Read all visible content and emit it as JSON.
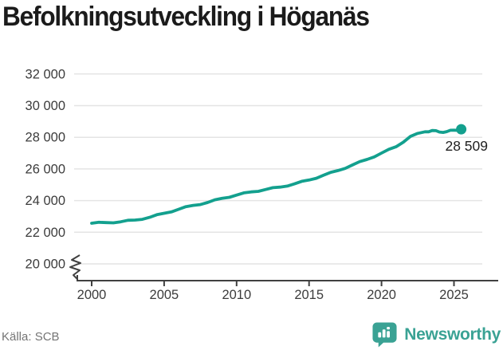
{
  "header": {
    "title": "Befolkningsutveckling i Höganäs"
  },
  "footer": {
    "source": "Källa: SCB",
    "brand": "Newsworthy",
    "brand_icon": "newsworthy-bubble-chart-icon"
  },
  "colors": {
    "background": "#ffffff",
    "line": "#13a08e",
    "dot": "#13a08e",
    "grid": "#e4e4e4",
    "axis": "#404040",
    "tick_label": "#3c3c3c",
    "title": "#1b1b1b",
    "end_label": "#1f1f1f",
    "source": "#757575",
    "brand": "#3aa294"
  },
  "chart_data": {
    "type": "line",
    "title": "Befolkningsutveckling i Höganäs",
    "xlabel": "",
    "ylabel": "",
    "source": "Källa: SCB",
    "grid": "horizontal",
    "legend": "none",
    "axis_break_at_bottom": true,
    "xlim": [
      1999,
      2026.5
    ],
    "ylim": [
      20000,
      32600
    ],
    "x_ticks": [
      2000,
      2005,
      2010,
      2015,
      2020,
      2025
    ],
    "x_tick_labels": [
      "2000",
      "2005",
      "2010",
      "2015",
      "2020",
      "2025"
    ],
    "y_ticks": [
      20000,
      22000,
      24000,
      26000,
      28000,
      30000,
      32000
    ],
    "y_tick_labels": [
      "20 000",
      "22 000",
      "24 000",
      "26 000",
      "28 000",
      "30 000",
      "32 000"
    ],
    "x": [
      2000,
      2001,
      2002,
      2003,
      2004,
      2005,
      2006,
      2007,
      2008,
      2009,
      2010,
      2011,
      2012,
      2013,
      2014,
      2015,
      2016,
      2017,
      2018,
      2019,
      2020,
      2021,
      2022,
      2023,
      2023.5,
      2024,
      2024.5,
      2025,
      2025.5
    ],
    "values": [
      22570,
      22610,
      22660,
      22770,
      22940,
      23200,
      23450,
      23700,
      23880,
      24140,
      24350,
      24550,
      24700,
      24850,
      25060,
      25300,
      25600,
      25900,
      26250,
      26600,
      27000,
      27400,
      28060,
      28350,
      28430,
      28330,
      28360,
      28450,
      28509
    ],
    "end_point": {
      "x": 2025.5,
      "value": 28509,
      "label": "28 509"
    }
  }
}
